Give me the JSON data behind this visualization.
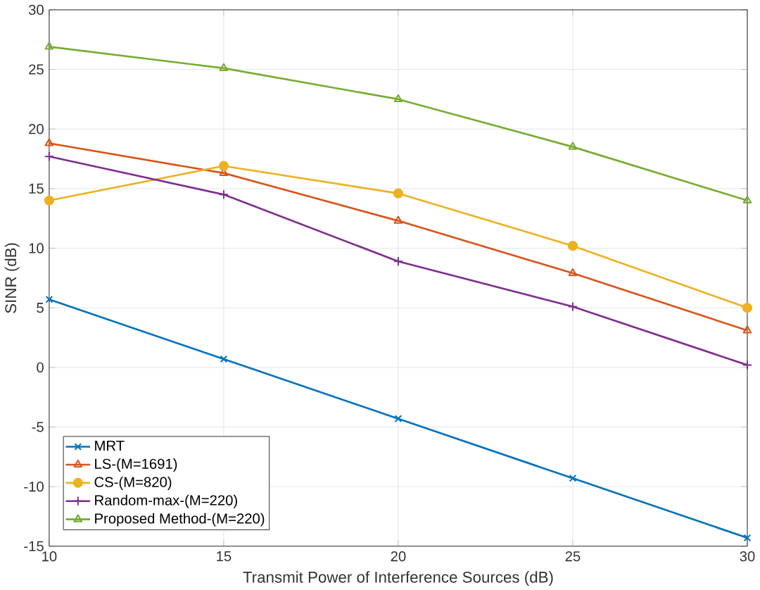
{
  "chart_data": {
    "type": "line",
    "xlabel": "Transmit Power of Interference Sources (dB)",
    "ylabel": "SINR (dB)",
    "x": [
      10,
      15,
      20,
      25,
      30
    ],
    "series": [
      {
        "name": "MRT",
        "color": "#0072bd",
        "marker": "cross",
        "values": [
          5.7,
          0.7,
          -4.3,
          -9.3,
          -14.3
        ]
      },
      {
        "name": "LS-(M=1691)",
        "color": "#d95319",
        "marker": "triangle",
        "values": [
          18.8,
          16.3,
          12.3,
          7.9,
          3.1
        ]
      },
      {
        "name": "CS-(M=820)",
        "color": "#edb120",
        "marker": "circle",
        "values": [
          14.0,
          16.9,
          14.6,
          10.2,
          5.0
        ]
      },
      {
        "name": "Random-max-(M=220)",
        "color": "#7e2f8e",
        "marker": "plus",
        "values": [
          17.7,
          14.5,
          8.9,
          5.1,
          0.2
        ]
      },
      {
        "name": "Proposed Method-(M=220)",
        "color": "#77ac30",
        "marker": "triangle-left",
        "values": [
          26.9,
          25.1,
          22.5,
          18.5,
          14.0
        ]
      }
    ],
    "xlim": [
      10,
      30
    ],
    "xticks": [
      10,
      15,
      20,
      25,
      30
    ],
    "ylim": [
      -15,
      30
    ],
    "yticks": [
      -15,
      -10,
      -5,
      0,
      5,
      10,
      15,
      20,
      25,
      30
    ],
    "grid": true,
    "legend": "bottom left",
    "line_style": "solid"
  }
}
